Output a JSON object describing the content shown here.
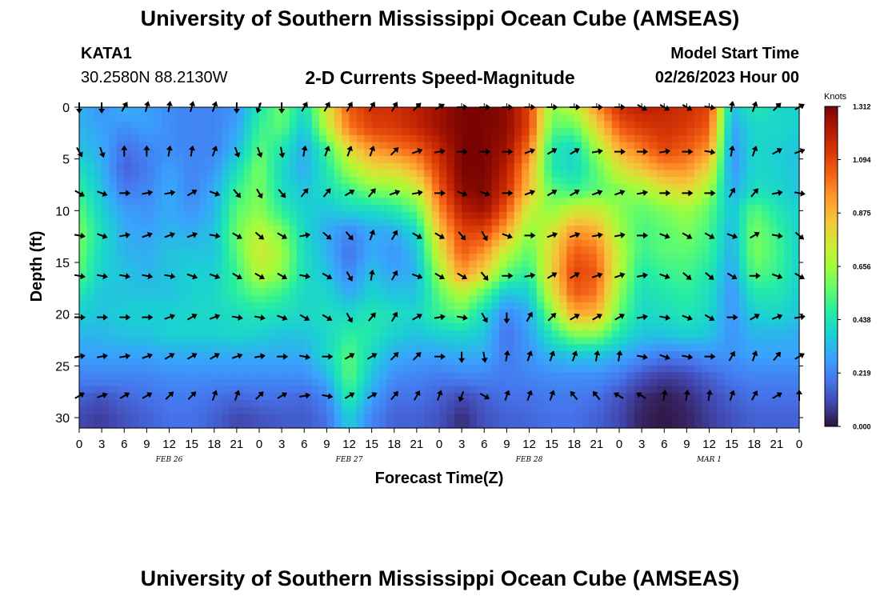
{
  "header": {
    "title": "University of Southern Mississippi Ocean Cube (AMSEAS)",
    "station_id": "KATA1",
    "coords": "30.2580N  88.2130W",
    "subtitle": "2-D Currents Speed-Magnitude",
    "model_start_label": "Model Start Time",
    "model_start_value": "02/26/2023 Hour 00"
  },
  "footer": {
    "title": "University of Southern Mississippi Ocean Cube (AMSEAS)"
  },
  "colors": {
    "axis": "#000000",
    "arrow": "#000000",
    "colormap": [
      "#30123b",
      "#4145ab",
      "#4675ed",
      "#39a2fc",
      "#1bcfd4",
      "#24eca6",
      "#61fc6c",
      "#a4fc3b",
      "#d1e834",
      "#f3c63a",
      "#fe9b2d",
      "#f36315",
      "#d93806",
      "#b11901",
      "#7a0402"
    ]
  },
  "chart_data": {
    "type": "heatmap",
    "xlabel": "Forecast Time(Z)",
    "ylabel": "Depth (ft)",
    "xlim": [
      0,
      96
    ],
    "ylim": [
      0,
      31
    ],
    "x_ticks": [
      0,
      3,
      6,
      9,
      12,
      15,
      18,
      21,
      24,
      27,
      30,
      33,
      36,
      39,
      42,
      45,
      48,
      51,
      54,
      57,
      60,
      63,
      66,
      69,
      72,
      75,
      78,
      81,
      84,
      87,
      90,
      93,
      96
    ],
    "x_tick_labels": [
      "0",
      "3",
      "6",
      "9",
      "12",
      "15",
      "18",
      "21",
      "0",
      "3",
      "6",
      "9",
      "12",
      "15",
      "18",
      "21",
      "0",
      "3",
      "6",
      "9",
      "12",
      "15",
      "18",
      "21",
      "0",
      "3",
      "6",
      "9",
      "12",
      "15",
      "18",
      "21",
      "0"
    ],
    "y_ticks": [
      0,
      5,
      10,
      15,
      20,
      25,
      30
    ],
    "y_tick_labels": [
      "0",
      "5",
      "10",
      "15",
      "20",
      "25",
      "30"
    ],
    "date_labels": [
      {
        "text": "FEB 26",
        "x": 12
      },
      {
        "text": "FEB 27",
        "x": 36
      },
      {
        "text": "FEB 28",
        "x": 60
      },
      {
        "text": "MAR 1",
        "x": 84
      }
    ],
    "colorbar": {
      "label": "Knots",
      "min": 0,
      "max": 1.312,
      "ticks": [
        1.312,
        1.094,
        0.875,
        0.656,
        0.438,
        0.219,
        0.0
      ],
      "tick_labels": [
        "1.312",
        "1.094",
        "0.875",
        "0.656",
        "0.438",
        "0.219",
        "0.000"
      ]
    },
    "depth_levels": [
      0,
      4.3,
      8.3,
      12.4,
      16.3,
      20.3,
      24.1,
      27.9
    ],
    "speed_grid_time_step_hours": 3,
    "speed_grid_depth_ft": [
      0,
      2,
      4,
      6,
      8,
      10,
      12,
      14,
      16,
      18,
      20,
      22,
      24,
      26,
      28,
      30
    ],
    "speed_knots": [
      [
        0.32,
        0.25,
        0.32,
        0.28,
        0.24,
        0.22,
        0.22,
        0.25,
        0.45,
        0.58,
        0.42,
        0.75,
        1.05,
        1.15,
        1.15,
        1.2,
        1.25,
        1.31,
        1.31,
        1.28,
        1.1,
        0.62,
        0.7,
        0.95,
        1.15,
        1.2,
        1.18,
        1.15,
        1.1,
        0.35,
        0.45,
        0.4,
        0.38
      ],
      [
        0.32,
        0.28,
        0.24,
        0.28,
        0.24,
        0.22,
        0.22,
        0.28,
        0.5,
        0.55,
        0.35,
        0.7,
        1.0,
        1.1,
        1.12,
        1.18,
        1.25,
        1.31,
        1.31,
        1.28,
        1.1,
        0.55,
        0.55,
        0.8,
        1.05,
        1.12,
        1.15,
        1.12,
        1.05,
        0.28,
        0.4,
        0.4,
        0.38
      ],
      [
        0.35,
        0.3,
        0.18,
        0.22,
        0.24,
        0.22,
        0.22,
        0.32,
        0.55,
        0.45,
        0.3,
        0.5,
        0.8,
        0.95,
        1.0,
        1.05,
        1.18,
        1.31,
        1.31,
        1.25,
        1.0,
        0.45,
        0.4,
        0.65,
        0.9,
        1.0,
        1.1,
        1.05,
        0.95,
        0.25,
        0.4,
        0.38,
        0.35
      ],
      [
        0.42,
        0.32,
        0.15,
        0.2,
        0.28,
        0.22,
        0.25,
        0.42,
        0.6,
        0.4,
        0.3,
        0.45,
        0.65,
        0.78,
        0.8,
        0.9,
        1.12,
        1.31,
        1.31,
        1.2,
        0.9,
        0.45,
        0.4,
        0.55,
        0.75,
        0.85,
        0.95,
        0.95,
        0.8,
        0.25,
        0.4,
        0.38,
        0.35
      ],
      [
        0.48,
        0.35,
        0.2,
        0.22,
        0.3,
        0.22,
        0.3,
        0.5,
        0.6,
        0.42,
        0.35,
        0.42,
        0.5,
        0.6,
        0.62,
        0.7,
        1.05,
        1.28,
        1.3,
        1.15,
        0.85,
        0.55,
        0.5,
        0.55,
        0.6,
        0.65,
        0.75,
        0.8,
        0.65,
        0.3,
        0.42,
        0.4,
        0.35
      ],
      [
        0.55,
        0.38,
        0.28,
        0.25,
        0.3,
        0.25,
        0.32,
        0.55,
        0.62,
        0.48,
        0.38,
        0.35,
        0.4,
        0.4,
        0.45,
        0.55,
        0.95,
        1.2,
        1.25,
        1.05,
        0.72,
        0.62,
        0.75,
        0.75,
        0.62,
        0.55,
        0.6,
        0.65,
        0.55,
        0.35,
        0.55,
        0.45,
        0.38
      ],
      [
        0.6,
        0.42,
        0.3,
        0.28,
        0.32,
        0.3,
        0.35,
        0.58,
        0.7,
        0.6,
        0.4,
        0.3,
        0.22,
        0.3,
        0.3,
        0.4,
        0.85,
        1.1,
        1.1,
        0.9,
        0.62,
        0.75,
        0.95,
        0.9,
        0.65,
        0.52,
        0.55,
        0.6,
        0.52,
        0.32,
        0.6,
        0.5,
        0.38
      ],
      [
        0.58,
        0.4,
        0.32,
        0.3,
        0.35,
        0.35,
        0.35,
        0.55,
        0.75,
        0.65,
        0.42,
        0.32,
        0.18,
        0.3,
        0.25,
        0.35,
        0.75,
        1.05,
        0.95,
        0.7,
        0.55,
        0.8,
        1.05,
        1.0,
        0.7,
        0.5,
        0.55,
        0.55,
        0.5,
        0.3,
        0.6,
        0.52,
        0.38
      ],
      [
        0.55,
        0.38,
        0.35,
        0.32,
        0.35,
        0.38,
        0.38,
        0.5,
        0.7,
        0.62,
        0.42,
        0.35,
        0.22,
        0.35,
        0.28,
        0.32,
        0.65,
        0.95,
        0.8,
        0.55,
        0.48,
        0.82,
        1.1,
        1.05,
        0.68,
        0.45,
        0.5,
        0.52,
        0.45,
        0.28,
        0.55,
        0.5,
        0.38
      ],
      [
        0.45,
        0.35,
        0.35,
        0.35,
        0.35,
        0.38,
        0.4,
        0.48,
        0.55,
        0.5,
        0.4,
        0.4,
        0.3,
        0.38,
        0.35,
        0.35,
        0.55,
        0.7,
        0.55,
        0.35,
        0.38,
        0.75,
        1.05,
        1.0,
        0.62,
        0.42,
        0.45,
        0.48,
        0.42,
        0.25,
        0.45,
        0.45,
        0.38
      ],
      [
        0.38,
        0.35,
        0.38,
        0.38,
        0.38,
        0.4,
        0.4,
        0.42,
        0.45,
        0.42,
        0.4,
        0.42,
        0.4,
        0.45,
        0.42,
        0.4,
        0.5,
        0.55,
        0.4,
        0.22,
        0.3,
        0.6,
        0.9,
        0.88,
        0.55,
        0.4,
        0.42,
        0.45,
        0.4,
        0.25,
        0.38,
        0.4,
        0.35
      ],
      [
        0.32,
        0.32,
        0.35,
        0.35,
        0.38,
        0.38,
        0.38,
        0.4,
        0.38,
        0.35,
        0.35,
        0.4,
        0.48,
        0.45,
        0.38,
        0.35,
        0.38,
        0.4,
        0.35,
        0.18,
        0.28,
        0.45,
        0.6,
        0.6,
        0.45,
        0.35,
        0.35,
        0.38,
        0.35,
        0.25,
        0.32,
        0.32,
        0.3
      ],
      [
        0.28,
        0.28,
        0.28,
        0.28,
        0.3,
        0.3,
        0.3,
        0.3,
        0.3,
        0.3,
        0.3,
        0.4,
        0.55,
        0.4,
        0.3,
        0.28,
        0.28,
        0.3,
        0.3,
        0.2,
        0.25,
        0.32,
        0.35,
        0.35,
        0.3,
        0.25,
        0.2,
        0.22,
        0.25,
        0.25,
        0.28,
        0.28,
        0.28
      ],
      [
        0.22,
        0.22,
        0.22,
        0.22,
        0.24,
        0.24,
        0.24,
        0.24,
        0.24,
        0.24,
        0.24,
        0.32,
        0.55,
        0.35,
        0.24,
        0.22,
        0.2,
        0.22,
        0.22,
        0.2,
        0.22,
        0.24,
        0.24,
        0.24,
        0.2,
        0.12,
        0.08,
        0.1,
        0.15,
        0.2,
        0.22,
        0.22,
        0.22
      ],
      [
        0.15,
        0.12,
        0.16,
        0.18,
        0.2,
        0.2,
        0.18,
        0.16,
        0.18,
        0.18,
        0.16,
        0.22,
        0.48,
        0.28,
        0.18,
        0.18,
        0.15,
        0.1,
        0.15,
        0.18,
        0.18,
        0.2,
        0.2,
        0.18,
        0.12,
        0.05,
        0.02,
        0.05,
        0.1,
        0.15,
        0.18,
        0.18,
        0.18
      ],
      [
        0.1,
        0.08,
        0.12,
        0.15,
        0.18,
        0.18,
        0.15,
        0.1,
        0.12,
        0.14,
        0.14,
        0.18,
        0.38,
        0.22,
        0.15,
        0.15,
        0.12,
        0.05,
        0.12,
        0.15,
        0.16,
        0.18,
        0.18,
        0.15,
        0.1,
        0.03,
        0.01,
        0.03,
        0.08,
        0.12,
        0.15,
        0.15,
        0.15
      ]
    ],
    "arrow_directions_deg": [
      [
        180,
        180,
        30,
        15,
        10,
        15,
        20,
        180,
        200,
        180,
        30,
        30,
        30,
        30,
        30,
        45,
        60,
        90,
        90,
        90,
        90,
        90,
        90,
        90,
        90,
        120,
        120,
        120,
        100,
        10,
        20,
        45,
        60
      ],
      [
        150,
        160,
        0,
        0,
        10,
        10,
        20,
        160,
        160,
        170,
        10,
        20,
        20,
        20,
        45,
        70,
        80,
        90,
        90,
        90,
        70,
        60,
        60,
        80,
        90,
        90,
        80,
        90,
        100,
        10,
        20,
        60,
        70
      ],
      [
        120,
        110,
        90,
        80,
        80,
        60,
        110,
        140,
        150,
        140,
        40,
        40,
        60,
        40,
        70,
        80,
        90,
        110,
        110,
        90,
        70,
        60,
        60,
        70,
        70,
        80,
        90,
        90,
        90,
        30,
        40,
        80,
        100
      ],
      [
        100,
        110,
        80,
        70,
        70,
        70,
        100,
        120,
        130,
        120,
        80,
        130,
        140,
        20,
        30,
        120,
        120,
        140,
        150,
        110,
        90,
        70,
        70,
        80,
        80,
        90,
        110,
        120,
        120,
        110,
        60,
        100,
        130
      ],
      [
        100,
        100,
        100,
        100,
        100,
        110,
        110,
        120,
        120,
        120,
        100,
        120,
        150,
        10,
        30,
        110,
        120,
        120,
        140,
        90,
        80,
        60,
        60,
        70,
        70,
        80,
        110,
        130,
        130,
        120,
        90,
        110,
        120
      ],
      [
        90,
        90,
        90,
        90,
        70,
        60,
        70,
        100,
        100,
        110,
        120,
        120,
        150,
        40,
        30,
        60,
        80,
        100,
        150,
        180,
        30,
        45,
        60,
        60,
        60,
        80,
        100,
        110,
        120,
        90,
        60,
        70,
        80
      ],
      [
        80,
        80,
        80,
        70,
        60,
        60,
        60,
        70,
        80,
        90,
        100,
        90,
        60,
        60,
        45,
        45,
        90,
        180,
        170,
        10,
        20,
        20,
        20,
        10,
        10,
        100,
        110,
        100,
        90,
        30,
        20,
        40,
        60
      ],
      [
        60,
        70,
        60,
        60,
        45,
        45,
        20,
        20,
        45,
        60,
        80,
        100,
        60,
        60,
        40,
        30,
        20,
        200,
        120,
        20,
        20,
        20,
        320,
        320,
        300,
        300,
        10,
        10,
        10,
        20,
        30,
        60,
        0
      ]
    ]
  }
}
